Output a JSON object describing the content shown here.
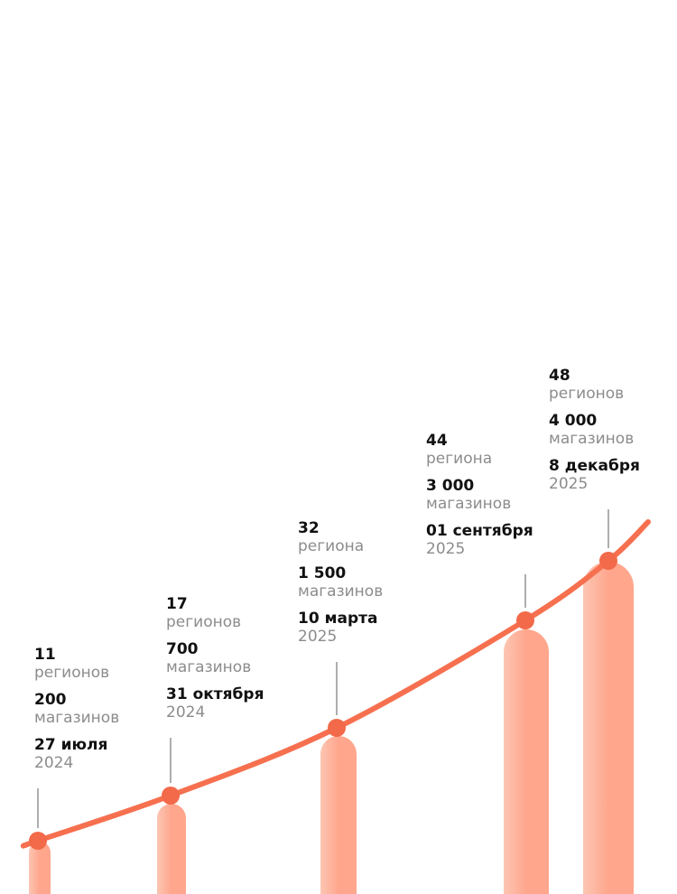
{
  "milestones": [
    {
      "regions": "11",
      "regions_label": "регионов",
      "stores": "200",
      "stores_label": "магазинов",
      "date": "27 июля",
      "year": "2024"
    },
    {
      "regions": "17",
      "regions_label": "регионов",
      "stores": "700",
      "stores_label": "магазинов",
      "date": "31 октября",
      "year": "2024"
    },
    {
      "regions": "32",
      "regions_label": "региона",
      "stores": "1 500",
      "stores_label": "магазинов",
      "date": "10 марта",
      "year": "2025"
    },
    {
      "regions": "44",
      "regions_label": "региона",
      "stores": "3 000",
      "stores_label": "магазинов",
      "date": "01 сентября",
      "year": "2025"
    },
    {
      "regions": "48",
      "regions_label": "регионов",
      "stores": "4 000",
      "stores_label": "магазинов",
      "date": "8 декабря",
      "year": "2025"
    }
  ]
}
